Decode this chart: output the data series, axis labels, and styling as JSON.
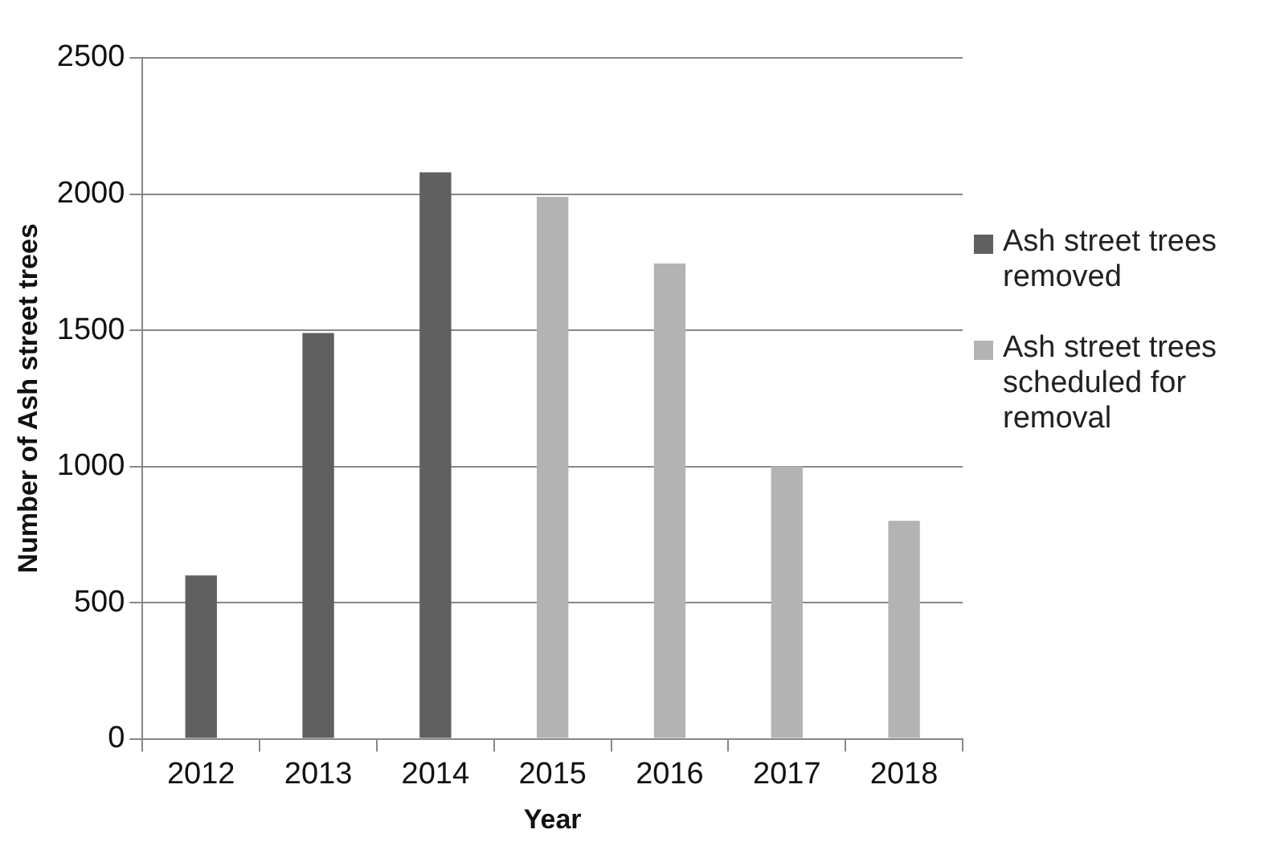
{
  "chart_data": {
    "type": "bar",
    "xlabel": "Year",
    "ylabel": "Number of Ash street trees",
    "categories": [
      "2012",
      "2013",
      "2014",
      "2015",
      "2016",
      "2017",
      "2018"
    ],
    "series": [
      {
        "name": "Ash street trees removed",
        "color": "#606060",
        "values": [
          600,
          1490,
          2080,
          null,
          null,
          null,
          null
        ]
      },
      {
        "name": "Ash street trees scheduled for removal",
        "color": "#b3b3b3",
        "values": [
          null,
          null,
          null,
          1990,
          1745,
          1000,
          800
        ]
      }
    ],
    "stacked": true,
    "ylim": [
      0,
      2500
    ],
    "yticks": [
      0,
      500,
      1000,
      1500,
      2000,
      2500
    ],
    "grid": "y",
    "legend": "right"
  }
}
